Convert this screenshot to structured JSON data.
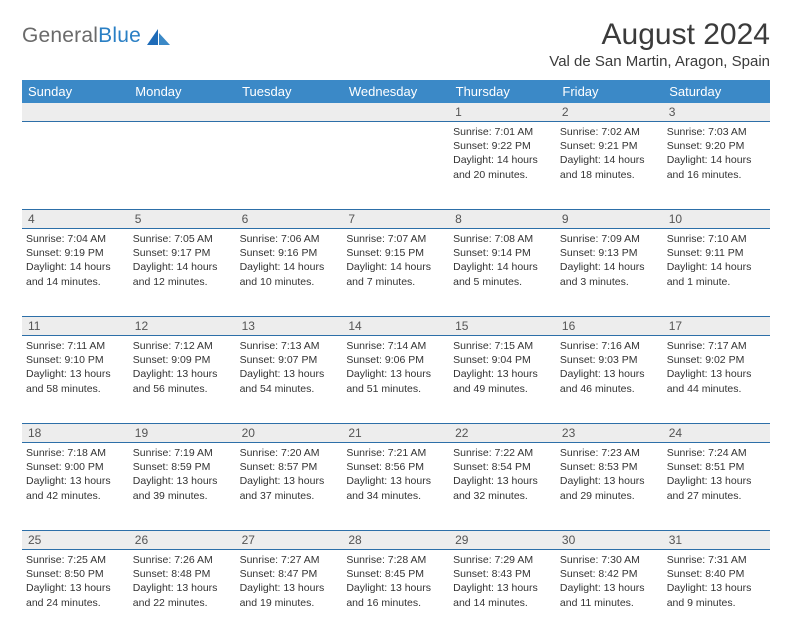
{
  "brand": {
    "word1": "General",
    "word2": "Blue"
  },
  "title": "August 2024",
  "location": "Val de San Martin, Aragon, Spain",
  "colors": {
    "header_bg": "#3b89c7",
    "header_text": "#ffffff",
    "row_divider": "#2d6fa8",
    "daynum_bg": "#ededed",
    "text": "#333333",
    "logo_gray": "#6a6a6a",
    "logo_blue": "#2a7fc4"
  },
  "day_headers": [
    "Sunday",
    "Monday",
    "Tuesday",
    "Wednesday",
    "Thursday",
    "Friday",
    "Saturday"
  ],
  "weeks": [
    [
      null,
      null,
      null,
      null,
      {
        "n": "1",
        "sunrise": "7:01 AM",
        "sunset": "9:22 PM",
        "daylight": "14 hours and 20 minutes."
      },
      {
        "n": "2",
        "sunrise": "7:02 AM",
        "sunset": "9:21 PM",
        "daylight": "14 hours and 18 minutes."
      },
      {
        "n": "3",
        "sunrise": "7:03 AM",
        "sunset": "9:20 PM",
        "daylight": "14 hours and 16 minutes."
      }
    ],
    [
      {
        "n": "4",
        "sunrise": "7:04 AM",
        "sunset": "9:19 PM",
        "daylight": "14 hours and 14 minutes."
      },
      {
        "n": "5",
        "sunrise": "7:05 AM",
        "sunset": "9:17 PM",
        "daylight": "14 hours and 12 minutes."
      },
      {
        "n": "6",
        "sunrise": "7:06 AM",
        "sunset": "9:16 PM",
        "daylight": "14 hours and 10 minutes."
      },
      {
        "n": "7",
        "sunrise": "7:07 AM",
        "sunset": "9:15 PM",
        "daylight": "14 hours and 7 minutes."
      },
      {
        "n": "8",
        "sunrise": "7:08 AM",
        "sunset": "9:14 PM",
        "daylight": "14 hours and 5 minutes."
      },
      {
        "n": "9",
        "sunrise": "7:09 AM",
        "sunset": "9:13 PM",
        "daylight": "14 hours and 3 minutes."
      },
      {
        "n": "10",
        "sunrise": "7:10 AM",
        "sunset": "9:11 PM",
        "daylight": "14 hours and 1 minute."
      }
    ],
    [
      {
        "n": "11",
        "sunrise": "7:11 AM",
        "sunset": "9:10 PM",
        "daylight": "13 hours and 58 minutes."
      },
      {
        "n": "12",
        "sunrise": "7:12 AM",
        "sunset": "9:09 PM",
        "daylight": "13 hours and 56 minutes."
      },
      {
        "n": "13",
        "sunrise": "7:13 AM",
        "sunset": "9:07 PM",
        "daylight": "13 hours and 54 minutes."
      },
      {
        "n": "14",
        "sunrise": "7:14 AM",
        "sunset": "9:06 PM",
        "daylight": "13 hours and 51 minutes."
      },
      {
        "n": "15",
        "sunrise": "7:15 AM",
        "sunset": "9:04 PM",
        "daylight": "13 hours and 49 minutes."
      },
      {
        "n": "16",
        "sunrise": "7:16 AM",
        "sunset": "9:03 PM",
        "daylight": "13 hours and 46 minutes."
      },
      {
        "n": "17",
        "sunrise": "7:17 AM",
        "sunset": "9:02 PM",
        "daylight": "13 hours and 44 minutes."
      }
    ],
    [
      {
        "n": "18",
        "sunrise": "7:18 AM",
        "sunset": "9:00 PM",
        "daylight": "13 hours and 42 minutes."
      },
      {
        "n": "19",
        "sunrise": "7:19 AM",
        "sunset": "8:59 PM",
        "daylight": "13 hours and 39 minutes."
      },
      {
        "n": "20",
        "sunrise": "7:20 AM",
        "sunset": "8:57 PM",
        "daylight": "13 hours and 37 minutes."
      },
      {
        "n": "21",
        "sunrise": "7:21 AM",
        "sunset": "8:56 PM",
        "daylight": "13 hours and 34 minutes."
      },
      {
        "n": "22",
        "sunrise": "7:22 AM",
        "sunset": "8:54 PM",
        "daylight": "13 hours and 32 minutes."
      },
      {
        "n": "23",
        "sunrise": "7:23 AM",
        "sunset": "8:53 PM",
        "daylight": "13 hours and 29 minutes."
      },
      {
        "n": "24",
        "sunrise": "7:24 AM",
        "sunset": "8:51 PM",
        "daylight": "13 hours and 27 minutes."
      }
    ],
    [
      {
        "n": "25",
        "sunrise": "7:25 AM",
        "sunset": "8:50 PM",
        "daylight": "13 hours and 24 minutes."
      },
      {
        "n": "26",
        "sunrise": "7:26 AM",
        "sunset": "8:48 PM",
        "daylight": "13 hours and 22 minutes."
      },
      {
        "n": "27",
        "sunrise": "7:27 AM",
        "sunset": "8:47 PM",
        "daylight": "13 hours and 19 minutes."
      },
      {
        "n": "28",
        "sunrise": "7:28 AM",
        "sunset": "8:45 PM",
        "daylight": "13 hours and 16 minutes."
      },
      {
        "n": "29",
        "sunrise": "7:29 AM",
        "sunset": "8:43 PM",
        "daylight": "13 hours and 14 minutes."
      },
      {
        "n": "30",
        "sunrise": "7:30 AM",
        "sunset": "8:42 PM",
        "daylight": "13 hours and 11 minutes."
      },
      {
        "n": "31",
        "sunrise": "7:31 AM",
        "sunset": "8:40 PM",
        "daylight": "13 hours and 9 minutes."
      }
    ]
  ],
  "labels": {
    "sunrise": "Sunrise: ",
    "sunset": "Sunset: ",
    "daylight": "Daylight: "
  }
}
